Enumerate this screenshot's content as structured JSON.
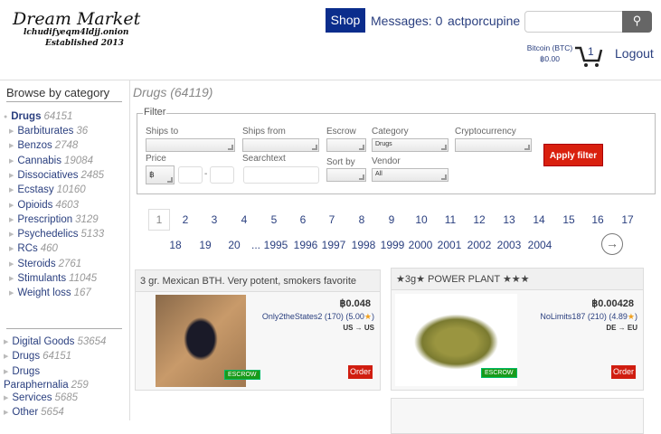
{
  "header": {
    "logo_title": "Dream Market",
    "logo_onion": "lchudifyeqm4ldjj.onion",
    "logo_established": "Established 2013",
    "shop": "Shop",
    "messages": "Messages: 0",
    "username": "actporcupine",
    "search_placeholder": "",
    "currency_label": "Bitcoin (BTC)",
    "balance": "฿0.00",
    "cart_count": "1",
    "logout": "Logout"
  },
  "sidebar": {
    "title": "Browse by category",
    "active": {
      "label": "Drugs",
      "count": "64151"
    },
    "subcategories": [
      {
        "label": "Barbiturates",
        "count": "36"
      },
      {
        "label": "Benzos",
        "count": "2748"
      },
      {
        "label": "Cannabis",
        "count": "19084"
      },
      {
        "label": "Dissociatives",
        "count": "2485"
      },
      {
        "label": "Ecstasy",
        "count": "10160"
      },
      {
        "label": "Opioids",
        "count": "4603"
      },
      {
        "label": "Prescription",
        "count": "3129"
      },
      {
        "label": "Psychedelics",
        "count": "5133"
      },
      {
        "label": "RCs",
        "count": "460"
      },
      {
        "label": "Steroids",
        "count": "2761"
      },
      {
        "label": "Stimulants",
        "count": "11045"
      },
      {
        "label": "Weight loss",
        "count": "167"
      }
    ],
    "categories": [
      {
        "label": "Digital Goods",
        "count": "53654"
      },
      {
        "label": "Drugs",
        "count": "64151"
      },
      {
        "label": "Drugs Paraphernalia",
        "count": "259"
      },
      {
        "label": "Services",
        "count": "5685"
      },
      {
        "label": "Other",
        "count": "5654"
      }
    ]
  },
  "main": {
    "title": "Drugs (64119)",
    "filter": {
      "legend": "Filter",
      "ships_to": "Ships to",
      "ships_from": "Ships from",
      "escrow": "Escrow",
      "category": "Category",
      "category_value": "Drugs",
      "cryptocurrency": "Cryptocurrency",
      "price": "Price",
      "price_currency": "฿",
      "price_sep": "-",
      "searchtext": "Searchtext",
      "sort_by": "Sort by",
      "vendor": "Vendor",
      "vendor_value": "All",
      "apply": "Apply filter"
    },
    "pagination": {
      "current": "1",
      "row1": [
        "2",
        "3",
        "4",
        "5",
        "6",
        "7",
        "8",
        "9",
        "10",
        "11",
        "12",
        "13",
        "14",
        "15",
        "16",
        "17"
      ],
      "row2": [
        "18",
        "19",
        "20",
        "...",
        "1995",
        "1996",
        "1997",
        "1998",
        "1999",
        "2000",
        "2001",
        "2002",
        "2003",
        "2004"
      ],
      "next_icon": "arrow-right-circle"
    },
    "listings": [
      {
        "title": "3 gr. Mexican BTH. Very potent, smokers favorite",
        "price": "฿0.048",
        "vendor": "Only2theStates2 (170) (5.00",
        "vendor_end": ")",
        "shipping": "US → US",
        "escrow": "ESCROW",
        "order": "Order"
      },
      {
        "title": "★3g★ POWER PLANT ★★★",
        "price": "฿0.00428",
        "vendor": "NoLimits187 (210) (4.89",
        "vendor_end": ")",
        "shipping": "DE → EU",
        "escrow": "ESCROW",
        "order": "Order"
      }
    ]
  },
  "colors": {
    "accent": "#0b2d8c",
    "apply": "#d9200e",
    "escrow": "#1a9a1a",
    "link": "#2a3f7f"
  }
}
